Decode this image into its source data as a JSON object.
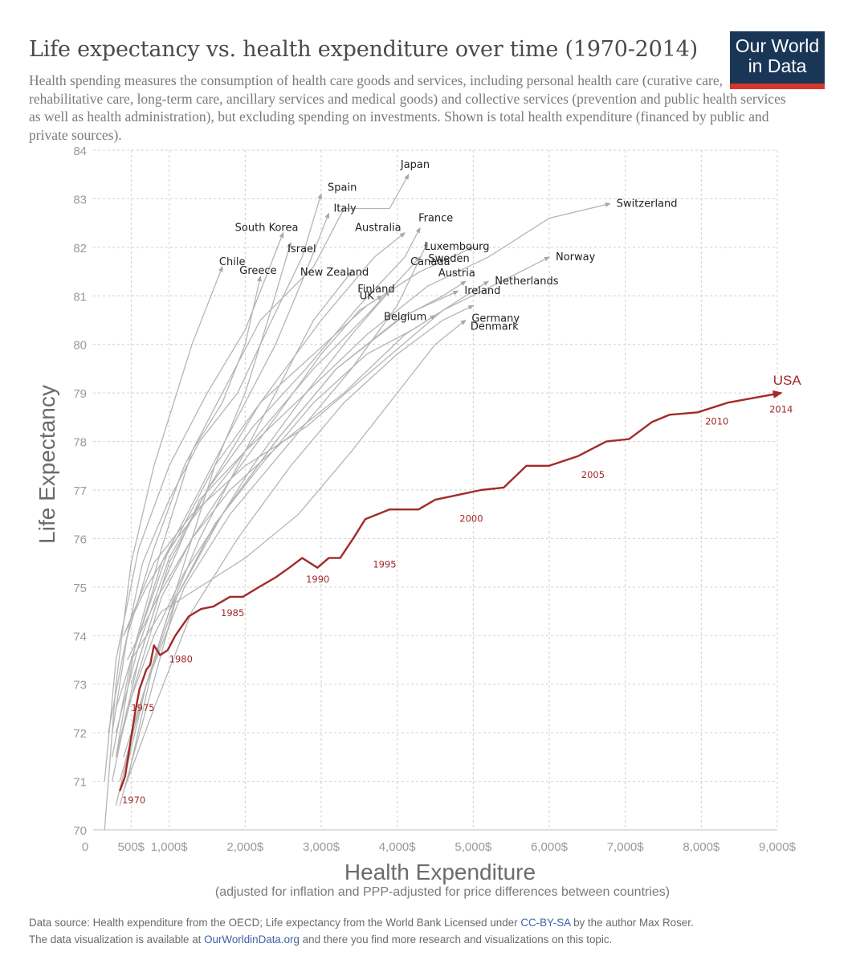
{
  "header": {
    "title": "Life expectancy vs. health expenditure over time (1970-2014)",
    "subtitle": "Health spending measures the consumption of health care goods and services, including personal health care (curative care, rehabilitative care, long-term care, ancillary services and medical goods) and collective services (prevention and public health services as well as health administration), but excluding spending on investments. Shown is total health expenditure (financed by public and private sources).",
    "logo_line1": "Our World",
    "logo_line2": "in Data"
  },
  "footer": {
    "line1_text": "Data source: Health expenditure from the OECD; Life expectancy from the World Bank    Licensed under ",
    "line1_link": "CC-BY-SA",
    "line1_tail": " by the author Max Roser.",
    "line2_text": "The data visualization is available at ",
    "line2_link": "OurWorldinData.org",
    "line2_tail": " and there you find more research and visualizations on this topic."
  },
  "colors": {
    "usa": "#a22a2a",
    "countries": "#b5b5b5",
    "grid": "#cfcfcf",
    "axis_text": "#999999"
  },
  "chart_data": {
    "type": "line",
    "title": "Life expectancy vs. health expenditure over time (1970-2014)",
    "xlabel": "Health Expenditure",
    "xlabel_note": "(adjusted for inflation and PPP-adjusted for price differences between countries)",
    "ylabel": "Life Expectancy",
    "xlim": [
      0,
      9000
    ],
    "ylim": [
      70,
      84
    ],
    "x_ticks": [
      0,
      500,
      1000,
      2000,
      3000,
      4000,
      5000,
      6000,
      7000,
      8000,
      9000
    ],
    "x_tick_labels": [
      "0",
      "500$",
      "1,000$",
      "2,000$",
      "3,000$",
      "4,000$",
      "5,000$",
      "6,000$",
      "7,000$",
      "8,000$",
      "9,000$"
    ],
    "y_ticks": [
      70,
      71,
      72,
      73,
      74,
      75,
      76,
      77,
      78,
      79,
      80,
      81,
      82,
      83,
      84
    ],
    "grid": true,
    "series": [
      {
        "name": "USA",
        "highlight": true,
        "year_labels": [
          "1970",
          "1975",
          "1980",
          "1985",
          "1990",
          "1995",
          "2000",
          "2005",
          "2010",
          "2014"
        ],
        "x": [
          350,
          420,
          480,
          550,
          610,
          700,
          750,
          800,
          880,
          980,
          1080,
          1260,
          1420,
          1580,
          1800,
          1970,
          2180,
          2400,
          2580,
          2750,
          2950,
          3100,
          3250,
          3420,
          3580,
          3900,
          4080,
          4280,
          4500,
          4800,
          5100,
          5400,
          5700,
          6000,
          6380,
          6750,
          7050,
          7350,
          7580,
          7950,
          8350,
          8700,
          9050
        ],
        "y": [
          70.8,
          71.1,
          71.7,
          72.4,
          72.9,
          73.3,
          73.4,
          73.8,
          73.6,
          73.7,
          74.0,
          74.4,
          74.55,
          74.6,
          74.8,
          74.8,
          75.0,
          75.2,
          75.4,
          75.6,
          75.4,
          75.6,
          75.6,
          76.0,
          76.4,
          76.6,
          76.6,
          76.6,
          76.8,
          76.9,
          77.0,
          77.05,
          77.5,
          77.5,
          77.7,
          78.0,
          78.05,
          78.4,
          78.55,
          78.6,
          78.8,
          78.9,
          79.0
        ]
      },
      {
        "name": "Japan",
        "x": [
          250,
          450,
          800,
          1200,
          1700,
          2200,
          2900,
          3300,
          3900,
          4150
        ],
        "y": [
          72.0,
          74.0,
          75.8,
          77.5,
          79.0,
          80.5,
          81.6,
          82.8,
          82.8,
          83.5
        ]
      },
      {
        "name": "Spain",
        "x": [
          200,
          380,
          650,
          1000,
          1400,
          1900,
          2350,
          2750,
          3000
        ],
        "y": [
          72.0,
          73.5,
          75.5,
          76.8,
          78.0,
          79.0,
          80.5,
          81.8,
          83.1
        ]
      },
      {
        "name": "Italy",
        "x": [
          250,
          500,
          900,
          1400,
          1900,
          2400,
          2800,
          3100
        ],
        "y": [
          71.5,
          73.5,
          75.5,
          77.0,
          78.5,
          80.0,
          81.5,
          82.7
        ]
      },
      {
        "name": "South Korea",
        "x": [
          150,
          300,
          600,
          1000,
          1500,
          2000,
          2500
        ],
        "y": [
          71.0,
          73.5,
          75.8,
          77.5,
          79.0,
          80.3,
          82.3
        ]
      },
      {
        "name": "Israel",
        "x": [
          450,
          800,
          1200,
          1600,
          2000,
          2300,
          2600
        ],
        "y": [
          71.0,
          73.5,
          75.5,
          77.5,
          79.0,
          80.5,
          82.1
        ]
      },
      {
        "name": "Chile",
        "x": [
          150,
          300,
          500,
          800,
          1100,
          1300,
          1700
        ],
        "y": [
          70.0,
          73.0,
          75.5,
          77.5,
          79.0,
          80.0,
          81.6
        ]
      },
      {
        "name": "Greece",
        "x": [
          300,
          550,
          900,
          1300,
          1700,
          2000,
          2200
        ],
        "y": [
          71.5,
          73.8,
          75.8,
          77.8,
          78.8,
          80.0,
          81.4
        ]
      },
      {
        "name": "Australia",
        "x": [
          300,
          600,
          1000,
          1500,
          2200,
          3000,
          3700,
          4100
        ],
        "y": [
          71.5,
          73.5,
          75.5,
          77.0,
          78.8,
          80.5,
          81.8,
          82.3
        ]
      },
      {
        "name": "France",
        "x": [
          300,
          600,
          1000,
          1500,
          2100,
          2800,
          3500,
          4100,
          4300
        ],
        "y": [
          72.0,
          73.8,
          75.6,
          77.0,
          78.3,
          79.5,
          80.8,
          81.8,
          82.4
        ]
      },
      {
        "name": "Luxembourg",
        "x": [
          400,
          700,
          1200,
          1800,
          2600,
          3400,
          4000,
          4400
        ],
        "y": [
          71.0,
          73.0,
          75.0,
          76.5,
          78.0,
          79.5,
          80.8,
          82.1
        ]
      },
      {
        "name": "Canada",
        "x": [
          300,
          600,
          1000,
          1600,
          2200,
          2900,
          3600,
          4300
        ],
        "y": [
          72.5,
          74.0,
          75.8,
          77.0,
          78.2,
          79.5,
          80.6,
          81.8
        ]
      },
      {
        "name": "Sweden",
        "x": [
          400,
          700,
          1100,
          1600,
          2200,
          2900,
          3600,
          4300,
          5000
        ],
        "y": [
          74.0,
          75.0,
          76.0,
          77.5,
          78.8,
          79.8,
          80.8,
          81.5,
          82.0
        ]
      },
      {
        "name": "Switzerland",
        "x": [
          500,
          900,
          1400,
          2000,
          2800,
          3600,
          4400,
          5200,
          6000,
          6800
        ],
        "y": [
          73.0,
          75.0,
          76.8,
          77.8,
          79.0,
          80.2,
          81.2,
          81.8,
          82.6,
          82.9
        ]
      },
      {
        "name": "Norway",
        "x": [
          400,
          800,
          1300,
          2000,
          2800,
          3700,
          4600,
          5500,
          6000
        ],
        "y": [
          74.0,
          75.5,
          76.5,
          77.5,
          78.3,
          79.5,
          80.7,
          81.4,
          81.8
        ]
      },
      {
        "name": "New Zealand",
        "x": [
          400,
          700,
          1000,
          1400,
          1900,
          2400,
          2900,
          3400
        ],
        "y": [
          71.5,
          73.0,
          74.5,
          76.0,
          77.5,
          79.0,
          80.5,
          81.5
        ]
      },
      {
        "name": "Finland",
        "x": [
          300,
          600,
          1000,
          1500,
          2100,
          2800,
          3400,
          3900
        ],
        "y": [
          70.5,
          72.5,
          74.5,
          76.0,
          77.5,
          79.0,
          80.2,
          81.1
        ]
      },
      {
        "name": "UK",
        "x": [
          300,
          550,
          900,
          1300,
          1800,
          2400,
          3000,
          3500,
          3800
        ],
        "y": [
          71.5,
          73.0,
          74.8,
          76.0,
          77.2,
          78.5,
          79.8,
          80.7,
          81.0
        ]
      },
      {
        "name": "Austria",
        "x": [
          350,
          700,
          1100,
          1700,
          2400,
          3200,
          4000,
          4600,
          4900
        ],
        "y": [
          70.5,
          72.5,
          74.8,
          76.5,
          78.0,
          79.5,
          80.5,
          81.0,
          81.3
        ]
      },
      {
        "name": "Netherlands",
        "x": [
          450,
          850,
          1300,
          1800,
          2500,
          3300,
          4100,
          4800,
          5200
        ],
        "y": [
          73.5,
          74.8,
          76.0,
          77.0,
          78.0,
          79.0,
          80.2,
          80.9,
          81.3
        ]
      },
      {
        "name": "Ireland",
        "x": [
          250,
          450,
          800,
          1200,
          1700,
          2400,
          3200,
          4100,
          4800
        ],
        "y": [
          71.0,
          72.5,
          74.0,
          75.3,
          76.5,
          78.0,
          79.5,
          80.6,
          81.1
        ]
      },
      {
        "name": "Germany",
        "x": [
          400,
          800,
          1300,
          1900,
          2600,
          3300,
          4000,
          4600,
          5000
        ],
        "y": [
          70.8,
          72.5,
          74.5,
          76.0,
          77.5,
          78.8,
          79.8,
          80.5,
          80.8
        ]
      },
      {
        "name": "Belgium",
        "x": [
          350,
          700,
          1100,
          1600,
          2200,
          2900,
          3600,
          4200,
          4500
        ],
        "y": [
          71.0,
          73.0,
          74.8,
          76.3,
          77.5,
          78.8,
          79.8,
          80.3,
          80.6
        ]
      },
      {
        "name": "Denmark",
        "x": [
          500,
          900,
          1400,
          2000,
          2700,
          3400,
          4000,
          4500,
          4900
        ],
        "y": [
          73.5,
          74.5,
          75.0,
          75.6,
          76.5,
          77.8,
          79.0,
          80.0,
          80.5
        ]
      }
    ]
  }
}
